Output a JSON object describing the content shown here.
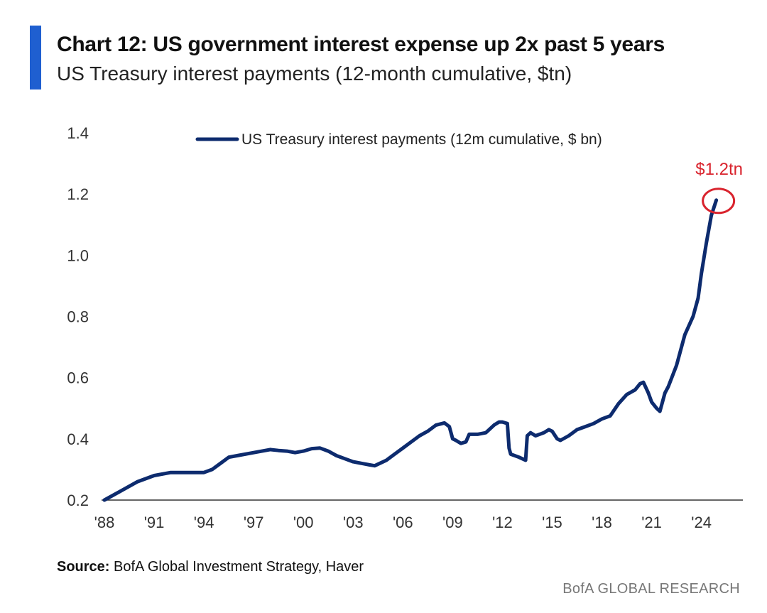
{
  "header": {
    "title": "Chart 12: US government interest expense up 2x past 5 years",
    "subtitle": "US Treasury interest payments (12-month cumulative, $tn)"
  },
  "footer": {
    "source_label": "Source:",
    "source_text": " BofA Global Investment Strategy, Haver",
    "brand": "BofA GLOBAL RESEARCH"
  },
  "colors": {
    "accent": "#1f5fd0",
    "series": "#0d2b6e",
    "annotation": "#d9232d",
    "axis": "#333333"
  },
  "chart_data": {
    "type": "line",
    "xlim": [
      1988,
      2026.5
    ],
    "ylim": [
      0.2,
      1.4
    ],
    "yticks": [
      0.2,
      0.4,
      0.6,
      0.8,
      1.0,
      1.2,
      1.4
    ],
    "ytick_labels": [
      "0.2",
      "0.4",
      "0.6",
      "0.8",
      "1.0",
      "1.2",
      "1.4"
    ],
    "xticks": [
      1988,
      1991,
      1994,
      1997,
      2000,
      2003,
      2006,
      2009,
      2012,
      2015,
      2018,
      2021,
      2024
    ],
    "xtick_labels": [
      "'88",
      "'91",
      "'94",
      "'97",
      "'00",
      "'03",
      "'06",
      "'09",
      "'12",
      "'15",
      "'18",
      "'21",
      "'24"
    ],
    "grid": false,
    "legend_position": "top-center",
    "annotation": {
      "text": "$1.2tn",
      "x": 2024.9,
      "y": 1.18
    },
    "series": [
      {
        "name": "US Treasury interest payments (12m cumulative, $ bn)",
        "x": [
          1988.0,
          1989.0,
          1990.0,
          1991.0,
          1992.0,
          1993.0,
          1994.0,
          1994.5,
          1995.0,
          1995.5,
          1996.0,
          1997.0,
          1998.0,
          1998.5,
          1999.0,
          1999.5,
          2000.0,
          2000.5,
          2001.0,
          2001.5,
          2002.0,
          2002.5,
          2003.0,
          2004.0,
          2004.3,
          2005.0,
          2005.5,
          2006.0,
          2006.5,
          2007.0,
          2007.5,
          2008.0,
          2008.5,
          2008.8,
          2009.0,
          2009.2,
          2009.5,
          2009.8,
          2010.0,
          2010.5,
          2011.0,
          2011.5,
          2011.8,
          2012.0,
          2012.3,
          2012.4,
          2012.5,
          2013.0,
          2013.4,
          2013.5,
          2013.7,
          2014.0,
          2014.5,
          2014.8,
          2015.0,
          2015.3,
          2015.5,
          2016.0,
          2016.5,
          2017.0,
          2017.5,
          2018.0,
          2018.5,
          2019.0,
          2019.5,
          2020.0,
          2020.3,
          2020.5,
          2020.8,
          2021.0,
          2021.3,
          2021.5,
          2021.8,
          2022.0,
          2022.5,
          2023.0,
          2023.5,
          2023.8,
          2024.0,
          2024.3,
          2024.6,
          2024.9
        ],
        "values": [
          0.2,
          0.23,
          0.26,
          0.28,
          0.29,
          0.29,
          0.29,
          0.3,
          0.32,
          0.34,
          0.345,
          0.355,
          0.365,
          0.362,
          0.36,
          0.355,
          0.36,
          0.368,
          0.37,
          0.36,
          0.345,
          0.335,
          0.325,
          0.315,
          0.312,
          0.33,
          0.35,
          0.37,
          0.39,
          0.41,
          0.425,
          0.445,
          0.452,
          0.44,
          0.4,
          0.395,
          0.385,
          0.39,
          0.415,
          0.415,
          0.42,
          0.445,
          0.455,
          0.455,
          0.45,
          0.37,
          0.35,
          0.34,
          0.33,
          0.41,
          0.42,
          0.41,
          0.42,
          0.43,
          0.425,
          0.4,
          0.395,
          0.41,
          0.43,
          0.44,
          0.45,
          0.465,
          0.475,
          0.515,
          0.545,
          0.56,
          0.58,
          0.585,
          0.55,
          0.52,
          0.5,
          0.49,
          0.55,
          0.57,
          0.64,
          0.74,
          0.8,
          0.86,
          0.94,
          1.04,
          1.13,
          1.18
        ]
      }
    ]
  }
}
